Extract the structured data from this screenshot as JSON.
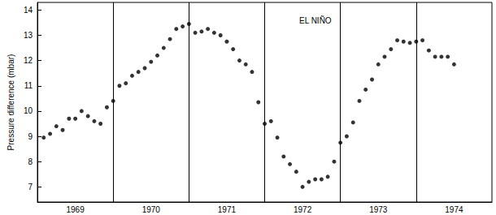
{
  "chart_data": {
    "type": "scatter",
    "y_label": "Pressure difference (mbar)",
    "annotation": "EL NIÑO",
    "color": "#000000",
    "marker": "circle",
    "grid": true,
    "xlim": [
      1969,
      1975
    ],
    "xticks": [
      {
        "value": 1969.5,
        "label": "1969"
      },
      {
        "value": 1970.5,
        "label": "1970"
      },
      {
        "value": 1971.5,
        "label": "1971"
      },
      {
        "value": 1972.5,
        "label": "1972"
      },
      {
        "value": 1973.5,
        "label": "1973"
      },
      {
        "value": 1974.5,
        "label": "1974"
      }
    ],
    "ylim": [
      6.4,
      14.3
    ],
    "yticks": [
      7,
      8,
      9,
      10,
      11,
      12,
      13,
      14
    ],
    "x": [
      1969.083,
      1969.167,
      1969.25,
      1969.333,
      1969.417,
      1969.5,
      1969.583,
      1969.667,
      1969.75,
      1969.833,
      1969.917,
      1970.0,
      1970.083,
      1970.167,
      1970.25,
      1970.333,
      1970.417,
      1970.5,
      1970.583,
      1970.667,
      1970.75,
      1970.833,
      1970.917,
      1971.0,
      1971.083,
      1971.167,
      1971.25,
      1971.333,
      1971.417,
      1971.5,
      1971.583,
      1971.667,
      1971.75,
      1971.833,
      1971.917,
      1972.0,
      1972.083,
      1972.167,
      1972.25,
      1972.333,
      1972.417,
      1972.5,
      1972.583,
      1972.667,
      1972.75,
      1972.833,
      1972.917,
      1973.0,
      1973.083,
      1973.167,
      1973.25,
      1973.333,
      1973.417,
      1973.5,
      1973.583,
      1973.667,
      1973.75,
      1973.833,
      1973.917,
      1974.0,
      1974.083,
      1974.167,
      1974.25,
      1974.333,
      1974.417,
      1974.5
    ],
    "values": [
      8.95,
      9.1,
      9.4,
      9.25,
      9.7,
      9.7,
      10.0,
      9.8,
      9.6,
      9.5,
      10.15,
      10.4,
      11.0,
      11.1,
      11.4,
      11.55,
      11.7,
      11.95,
      12.2,
      12.5,
      12.85,
      13.25,
      13.35,
      13.45,
      13.1,
      13.15,
      13.25,
      13.1,
      13.0,
      12.75,
      12.45,
      12.0,
      11.85,
      11.55,
      10.35,
      9.5,
      9.6,
      8.95,
      8.2,
      7.9,
      7.6,
      7.0,
      7.2,
      7.3,
      7.3,
      7.4,
      8.0,
      8.75,
      9.0,
      9.55,
      10.4,
      10.85,
      11.25,
      11.85,
      12.15,
      12.45,
      12.8,
      12.75,
      12.7,
      12.75,
      12.8,
      12.4,
      12.15,
      12.15,
      12.15,
      11.85
    ]
  }
}
